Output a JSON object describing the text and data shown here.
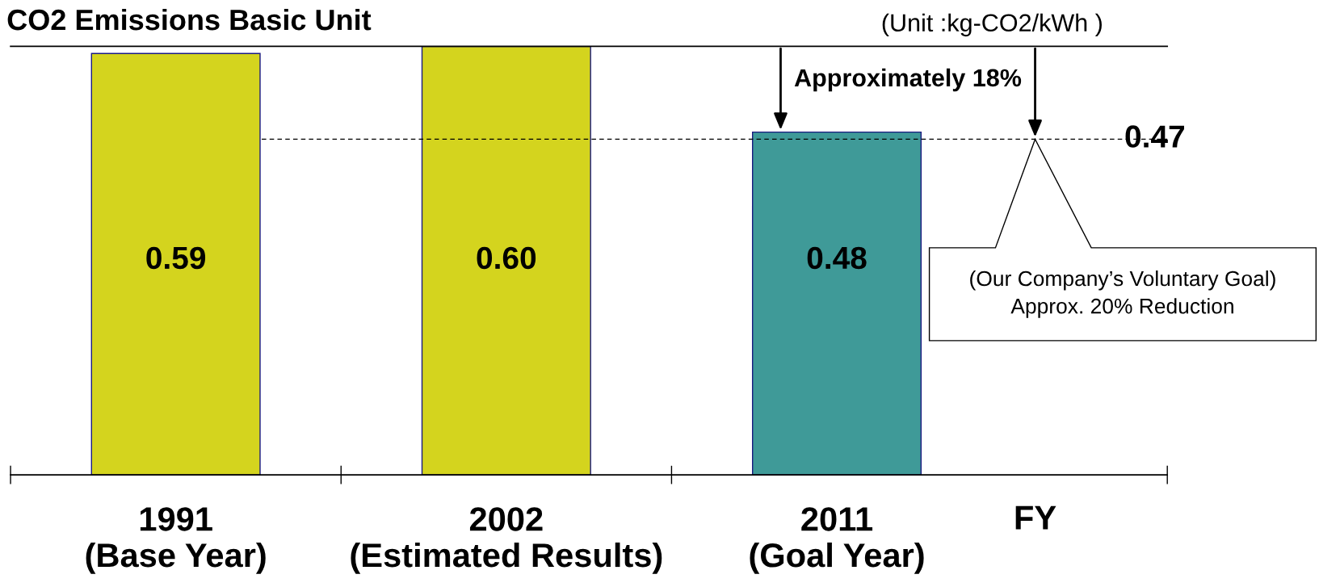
{
  "chart_data": {
    "type": "bar",
    "title": "CO2 Emissions Basic Unit",
    "categories": [
      "1991\n(Base Year)",
      "2002\n(Estimated Results)",
      "2011\n(Goal Year)"
    ],
    "values": [
      0.59,
      0.6,
      0.48
    ],
    "colors": [
      "#d4d41e",
      "#d4d41e",
      "#3f9a98"
    ],
    "ylim": [
      0,
      0.6
    ],
    "tick_labels": "x",
    "value_labels": [
      "0.59",
      "0.60",
      "0.48"
    ],
    "xlabel": "FY",
    "legend": false,
    "grid": false,
    "ref_lines": [
      {
        "axis": "y",
        "value": 0.47,
        "label": "0.47",
        "line_style": "dashed",
        "color": "#000000"
      }
    ],
    "annotations": [
      "(Unit :kg-CO2/kWh )",
      "Approximately 18%",
      "(Our Company’s Voluntary Goal)\nApprox. 20% Reduction"
    ]
  }
}
